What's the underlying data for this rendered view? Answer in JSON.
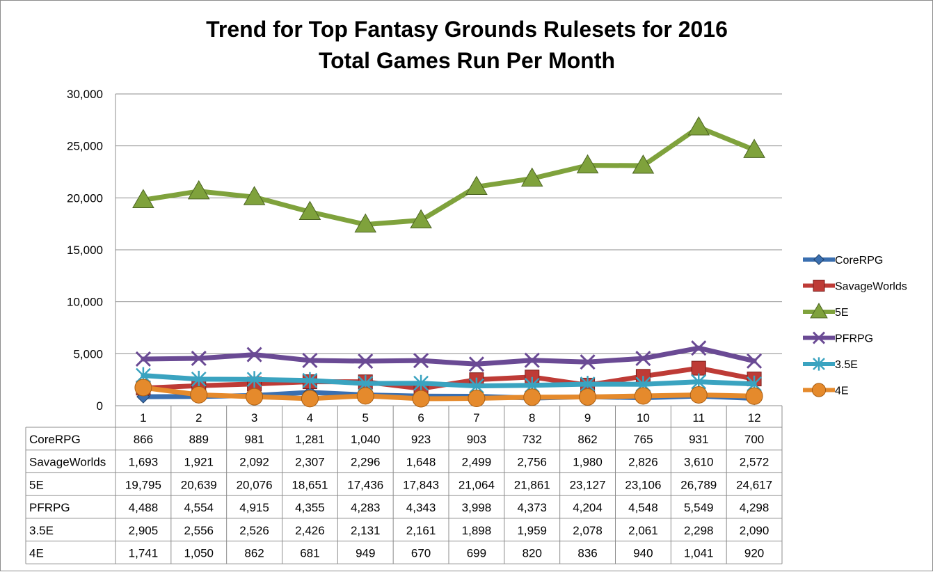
{
  "chart_data": {
    "type": "line",
    "title": "Trend for Top Fantasy Grounds Rulesets for 2016",
    "subtitle": "Total Games Run Per Month",
    "categories": [
      "1",
      "2",
      "3",
      "4",
      "5",
      "6",
      "7",
      "8",
      "9",
      "10",
      "11",
      "12"
    ],
    "ylim": [
      0,
      30000
    ],
    "yticks": [
      "0",
      "5,000",
      "10,000",
      "15,000",
      "20,000",
      "25,000",
      "30,000"
    ],
    "ytick_values": [
      0,
      5000,
      10000,
      15000,
      20000,
      25000,
      30000
    ],
    "grid": true,
    "legend_position": "right",
    "data_table": true,
    "series": [
      {
        "name": "CoreRPG",
        "color": "#3a6fb0",
        "marker": "diamond",
        "values": [
          866,
          889,
          981,
          1281,
          1040,
          923,
          903,
          732,
          862,
          765,
          931,
          700
        ],
        "labels": [
          "866",
          "889",
          "981",
          "1,281",
          "1,040",
          "923",
          "903",
          "732",
          "862",
          "765",
          "931",
          "700"
        ]
      },
      {
        "name": "SavageWorlds",
        "color": "#be3b36",
        "marker": "square",
        "values": [
          1693,
          1921,
          2092,
          2307,
          2296,
          1648,
          2499,
          2756,
          1980,
          2826,
          3610,
          2572
        ],
        "labels": [
          "1,693",
          "1,921",
          "2,092",
          "2,307",
          "2,296",
          "1,648",
          "2,499",
          "2,756",
          "1,980",
          "2,826",
          "3,610",
          "2,572"
        ]
      },
      {
        "name": "5E",
        "color": "#7fa23c",
        "marker": "triangle",
        "values": [
          19795,
          20639,
          20076,
          18651,
          17436,
          17843,
          21064,
          21861,
          23127,
          23106,
          26789,
          24617
        ],
        "labels": [
          "19,795",
          "20,639",
          "20,076",
          "18,651",
          "17,436",
          "17,843",
          "21,064",
          "21,861",
          "23,127",
          "23,106",
          "26,789",
          "24,617"
        ]
      },
      {
        "name": "PFRPG",
        "color": "#6a4a94",
        "marker": "x",
        "values": [
          4488,
          4554,
          4915,
          4355,
          4283,
          4343,
          3998,
          4373,
          4204,
          4548,
          5549,
          4298
        ],
        "labels": [
          "4,488",
          "4,554",
          "4,915",
          "4,355",
          "4,283",
          "4,343",
          "3,998",
          "4,373",
          "4,204",
          "4,548",
          "5,549",
          "4,298"
        ]
      },
      {
        "name": "3.5E",
        "color": "#3aa3c0",
        "marker": "star",
        "values": [
          2905,
          2556,
          2526,
          2426,
          2131,
          2161,
          1898,
          1959,
          2078,
          2061,
          2298,
          2090
        ],
        "labels": [
          "2,905",
          "2,556",
          "2,526",
          "2,426",
          "2,131",
          "2,161",
          "1,898",
          "1,959",
          "2,078",
          "2,061",
          "2,298",
          "2,090"
        ]
      },
      {
        "name": "4E",
        "color": "#e58a2c",
        "marker": "circle",
        "values": [
          1741,
          1050,
          862,
          681,
          949,
          670,
          699,
          820,
          836,
          940,
          1041,
          920
        ],
        "labels": [
          "1,741",
          "1,050",
          "862",
          "681",
          "949",
          "670",
          "699",
          "820",
          "836",
          "940",
          "1,041",
          "920"
        ]
      }
    ]
  }
}
